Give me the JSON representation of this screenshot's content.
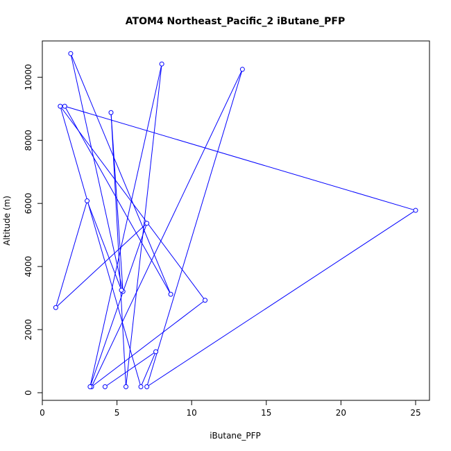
{
  "chart_data": {
    "type": "line",
    "title": "ATOM4 Northeast_Pacific_2 iButane_PFP",
    "xlabel": "iButane_PFP",
    "ylabel": "Altitude (m)",
    "xlim": [
      0,
      25
    ],
    "ylim": [
      0,
      10000
    ],
    "x_ticks": [
      0,
      5,
      10,
      15,
      20,
      25
    ],
    "y_ticks": [
      0,
      2000,
      4000,
      6000,
      8000,
      10000
    ],
    "x_tick_labels": [
      "0",
      "5",
      "10",
      "15",
      "20",
      "25"
    ],
    "y_tick_labels": [
      "0",
      "2000",
      "4000",
      "6000",
      "8000",
      "10000"
    ],
    "grid": false,
    "color": "#0000ff",
    "series": [
      {
        "markers": "open-circle",
        "x": [
          4.2,
          7.6,
          6.6,
          1.2,
          10.9,
          3.3,
          13.4,
          7.0,
          25.0,
          1.5,
          8.6,
          1.9,
          5.4,
          4.6,
          5.6,
          8.0,
          3.2,
          7.0,
          0.9,
          3.0,
          5.3
        ],
        "y": [
          190,
          1300,
          190,
          9080,
          2930,
          190,
          10250,
          190,
          5780,
          9080,
          3120,
          10750,
          3210,
          8880,
          190,
          10420,
          190,
          5370,
          2700,
          6080,
          3250
        ]
      }
    ]
  }
}
